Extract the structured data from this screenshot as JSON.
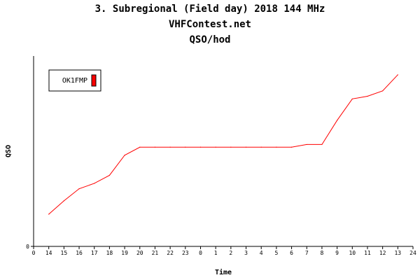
{
  "chart_data": {
    "type": "line",
    "title": "3. Subregional (Field day) 2018 144 MHz",
    "subtitle": "VHFContest.net",
    "subtitle2": "QSO/hod",
    "xlabel": "Time",
    "ylabel": "QSO",
    "x_tick_labels": [
      "0",
      "14",
      "15",
      "16",
      "17",
      "18",
      "19",
      "20",
      "21",
      "22",
      "23",
      "0",
      "1",
      "2",
      "3",
      "4",
      "5",
      "6",
      "7",
      "8",
      "9",
      "10",
      "11",
      "12",
      "13",
      "24"
    ],
    "y_tick_labels": [
      "0"
    ],
    "legend_position": "top-left",
    "grid": false,
    "series": [
      {
        "name": "OK1FMP",
        "color": "#ff0000",
        "x": [
          "14",
          "15",
          "16",
          "17",
          "18",
          "19",
          "20",
          "21",
          "22",
          "23",
          "0",
          "1",
          "2",
          "3",
          "4",
          "5",
          "6",
          "7",
          "8",
          "9",
          "10",
          "11",
          "12",
          "13"
        ],
        "values": [
          24,
          34,
          43,
          47,
          53,
          68,
          74,
          74,
          74,
          74,
          74,
          74,
          74,
          74,
          74,
          74,
          74,
          76,
          76,
          94,
          110,
          112,
          116,
          128
        ]
      }
    ],
    "ylim": [
      0,
      142
    ]
  }
}
